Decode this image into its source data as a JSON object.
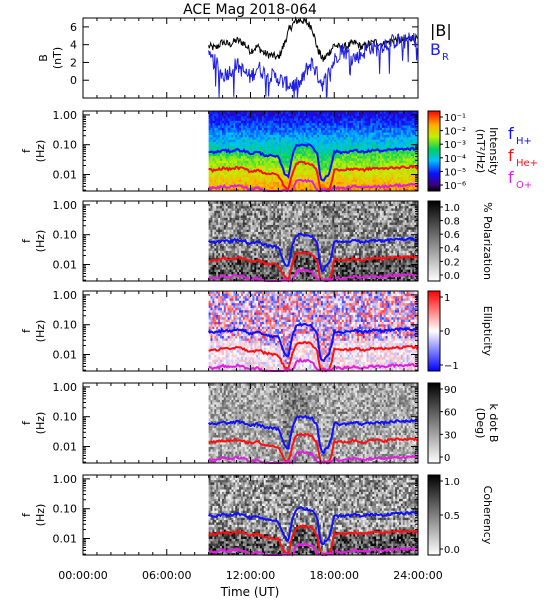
{
  "title": "ACE Mag 2018-064",
  "xlabel": "Time (UT)",
  "x_ticks": [
    "00:00:00",
    "06:00:00",
    "12:00:00",
    "18:00:00",
    "24:00:00"
  ],
  "colors": {
    "B": "#000000",
    "BR": "#2020e0",
    "fH": "#1010ff",
    "fHe": "#ff1010",
    "fO": "#e020e0"
  },
  "chart_data": [
    {
      "type": "line",
      "panel": "B",
      "ylabel": "B",
      "yunit": "(nT)",
      "xlim": [
        0,
        24
      ],
      "ylim": [
        -2,
        7
      ],
      "y_ticks": [
        "0",
        "2",
        "4",
        "6"
      ],
      "x_tick_values": [
        0,
        6,
        12,
        18,
        24
      ],
      "legend": [
        "|B|",
        "B"
      ],
      "legend_subscript": "R",
      "legend_position": "right",
      "data_start_hour": 9,
      "series": [
        {
          "name": "|B|",
          "color": "#000000",
          "x": [
            9.0,
            9.5,
            10.0,
            10.5,
            11.0,
            11.5,
            12.0,
            12.5,
            13.0,
            13.5,
            14.0,
            14.4,
            14.8,
            15.2,
            15.6,
            16.0,
            16.4,
            16.8,
            17.2,
            17.6,
            18.0,
            18.5,
            19.0,
            19.5,
            20.0,
            20.5,
            21.0,
            21.5,
            22.0,
            22.5,
            23.0,
            23.5,
            24.0
          ],
          "y": [
            3.8,
            3.6,
            4.3,
            4.0,
            4.5,
            4.2,
            3.3,
            3.8,
            3.0,
            2.8,
            2.5,
            4.0,
            5.8,
            6.6,
            6.8,
            6.5,
            6.0,
            3.5,
            2.3,
            3.0,
            4.0,
            3.6,
            3.9,
            4.2,
            3.7,
            4.1,
            4.3,
            4.0,
            4.4,
            4.6,
            4.5,
            4.8,
            4.6
          ]
        },
        {
          "name": "B_R",
          "color": "#2020e0",
          "x": [
            9.0,
            9.5,
            10.0,
            10.5,
            11.0,
            11.5,
            12.0,
            12.5,
            13.0,
            13.5,
            14.0,
            14.4,
            14.8,
            15.2,
            15.6,
            16.0,
            16.4,
            16.8,
            17.2,
            17.6,
            18.0,
            18.5,
            19.0,
            19.5,
            20.0,
            20.5,
            21.0,
            21.5,
            22.0,
            22.5,
            23.0,
            23.5,
            24.0
          ],
          "y": [
            2.5,
            2.0,
            0.5,
            1.0,
            1.8,
            1.0,
            0.3,
            1.5,
            0.8,
            0.5,
            0.2,
            -0.3,
            -0.5,
            -0.6,
            -0.4,
            1.2,
            2.0,
            0.6,
            -0.5,
            0.8,
            2.2,
            3.5,
            3.0,
            2.5,
            3.0,
            3.8,
            3.5,
            4.0,
            4.2,
            4.5,
            4.3,
            4.6,
            4.5
          ]
        }
      ]
    },
    {
      "type": "heatmap",
      "panel": "intensity",
      "ylabel": "f",
      "yunit": "(Hz)",
      "y_scale": "log",
      "ylim": [
        0.003,
        1.3
      ],
      "y_ticks": [
        "1.00",
        "0.10",
        "0.01"
      ],
      "colorbar_label": "Intensity",
      "colorbar_unit": "(nT²/Hz)",
      "colorbar_ticks": [
        "10⁻¹",
        "10⁻²",
        "10⁻³",
        "10⁻⁴",
        "10⁻⁵",
        "10⁻⁶"
      ],
      "colorscale": "rainbow",
      "legend": [
        "f",
        "f",
        "f"
      ],
      "legend_subscripts": [
        "H+",
        "He+",
        "O+"
      ],
      "legend_position": "right",
      "data_start_hour": 9
    },
    {
      "type": "heatmap",
      "panel": "polarization",
      "ylabel": "f",
      "yunit": "(Hz)",
      "y_scale": "log",
      "y_ticks": [
        "1.00",
        "0.10",
        "0.01"
      ],
      "colorbar_label": "% Polarization",
      "colorbar_ticks": [
        "1.0",
        "0.8",
        "0.6",
        "0.4",
        "0.2",
        "0.0"
      ],
      "colorscale": "gray",
      "data_start_hour": 9
    },
    {
      "type": "heatmap",
      "panel": "ellipticity",
      "ylabel": "f",
      "yunit": "(Hz)",
      "y_scale": "log",
      "y_ticks": [
        "1.00",
        "0.10",
        "0.01"
      ],
      "colorbar_label": "Ellipticity",
      "colorbar_ticks": [
        "1",
        "0",
        "−1"
      ],
      "colorscale": "blue-white-red",
      "data_start_hour": 9
    },
    {
      "type": "heatmap",
      "panel": "kdotb",
      "ylabel": "f",
      "yunit": "(Hz)",
      "y_scale": "log",
      "y_ticks": [
        "1.00",
        "0.10",
        "0.01"
      ],
      "colorbar_label": "k dot B",
      "colorbar_unit": "(Deg)",
      "colorbar_ticks": [
        "90",
        "60",
        "30",
        "0"
      ],
      "colorscale": "gray",
      "data_start_hour": 9
    },
    {
      "type": "heatmap",
      "panel": "coherency",
      "ylabel": "f",
      "yunit": "(Hz)",
      "y_scale": "log",
      "y_ticks": [
        "1.00",
        "0.10",
        "0.01"
      ],
      "colorbar_label": "Coherency",
      "colorbar_ticks": [
        "1.0",
        "0.5",
        "0.0"
      ],
      "colorscale": "gray",
      "data_start_hour": 9
    }
  ],
  "gyrofrequency_curves": {
    "x": [
      9.0,
      9.5,
      10.0,
      10.5,
      11.0,
      11.5,
      12.0,
      12.5,
      13.0,
      13.5,
      14.0,
      14.4,
      14.7,
      15.0,
      15.3,
      15.6,
      16.0,
      16.4,
      16.8,
      17.0,
      17.2,
      17.4,
      17.6,
      17.8,
      18.0,
      18.5,
      19.0,
      19.5,
      20.0,
      20.5,
      21.0,
      21.5,
      22.0,
      22.5,
      23.0,
      23.5,
      24.0
    ],
    "fH": [
      0.058,
      0.055,
      0.065,
      0.06,
      0.068,
      0.063,
      0.05,
      0.057,
      0.045,
      0.042,
      0.038,
      0.012,
      0.008,
      0.045,
      0.098,
      0.102,
      0.099,
      0.09,
      0.05,
      0.008,
      0.006,
      0.009,
      0.01,
      0.02,
      0.06,
      0.055,
      0.059,
      0.064,
      0.056,
      0.062,
      0.066,
      0.061,
      0.067,
      0.07,
      0.069,
      0.073,
      0.07
    ],
    "fHe": [
      0.0145,
      0.0138,
      0.0163,
      0.015,
      0.017,
      0.0158,
      0.0125,
      0.0143,
      0.0113,
      0.0105,
      0.0095,
      0.004,
      0.003,
      0.0113,
      0.0245,
      0.0255,
      0.0248,
      0.0225,
      0.0125,
      0.003,
      0.003,
      0.003,
      0.003,
      0.005,
      0.015,
      0.0138,
      0.0148,
      0.016,
      0.014,
      0.0155,
      0.0165,
      0.0153,
      0.0168,
      0.0175,
      0.0173,
      0.0183,
      0.0175
    ],
    "fO": [
      0.0036,
      0.0034,
      0.0041,
      0.0038,
      0.0043,
      0.0039,
      0.0031,
      0.0036,
      0.0028,
      0.0026,
      0.0024,
      0.003,
      0.003,
      0.0028,
      0.0061,
      0.0064,
      0.0062,
      0.0056,
      0.0031,
      0.003,
      0.003,
      0.003,
      0.003,
      0.003,
      0.0038,
      0.0034,
      0.0037,
      0.004,
      0.0035,
      0.0039,
      0.0041,
      0.0038,
      0.0042,
      0.0044,
      0.0043,
      0.0046,
      0.0044
    ]
  }
}
